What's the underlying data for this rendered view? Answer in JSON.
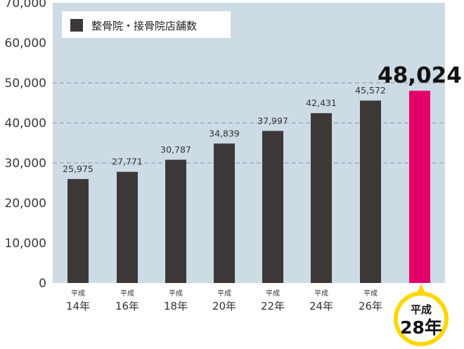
{
  "chart_data": {
    "type": "bar",
    "categories": [
      {
        "era": "平成",
        "year": "14年"
      },
      {
        "era": "平成",
        "year": "16年"
      },
      {
        "era": "平成",
        "year": "18年"
      },
      {
        "era": "平成",
        "year": "20年"
      },
      {
        "era": "平成",
        "year": "22年"
      },
      {
        "era": "平成",
        "year": "24年"
      },
      {
        "era": "平成",
        "year": "26年"
      },
      {
        "era": "平成",
        "year": "28年"
      }
    ],
    "series": [
      {
        "name": "整骨院・接骨院店舗数",
        "values": [
          25975,
          27771,
          30787,
          34839,
          37997,
          42431,
          45572,
          48024
        ],
        "data_labels": [
          "25,975",
          "27,771",
          "30,787",
          "34,839",
          "37,997",
          "42,431",
          "45,572",
          "48,024"
        ]
      }
    ],
    "yticks": [
      "0",
      "10,000",
      "20,000",
      "30,000",
      "40,000",
      "50,000",
      "60,000",
      "70,000"
    ],
    "ylim": [
      0,
      70000
    ],
    "gridlines": [
      30000,
      40000,
      50000
    ],
    "highlight_index": 7,
    "legend_position": "top-left",
    "colors": {
      "background": "#cddbe4",
      "bar": "#3d3838",
      "highlight_bar": "#e3006b",
      "highlight_shadow": "#3d3838",
      "badge": "#ffd700",
      "grid": "#8899a6"
    }
  }
}
